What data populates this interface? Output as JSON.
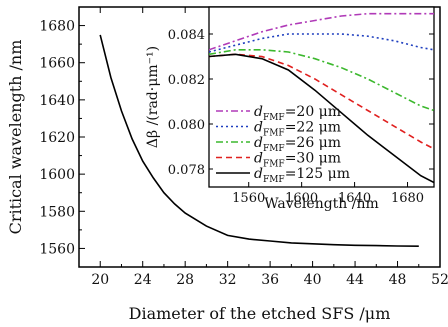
{
  "chart_data": [
    {
      "type": "line",
      "panel": "main",
      "xlabel": "Diameter of the etched SFS /μm",
      "ylabel": "Critical wavelength /nm",
      "xlim": [
        18,
        52
      ],
      "ylim": [
        1550,
        1690
      ],
      "xticks": [
        20,
        24,
        28,
        32,
        36,
        40,
        44,
        48,
        52
      ],
      "yticks": [
        1560,
        1580,
        1600,
        1620,
        1640,
        1660,
        1680
      ],
      "grid": false,
      "series": [
        {
          "color": "#000000",
          "style": "solid",
          "x": [
            20,
            21,
            22,
            23,
            24,
            25,
            26,
            27,
            28,
            30,
            32,
            34,
            36,
            38,
            40,
            42,
            44,
            46,
            48,
            50
          ],
          "y": [
            1675,
            1652,
            1634,
            1619,
            1607,
            1598,
            1590,
            1584,
            1579,
            1572,
            1567,
            1565,
            1564,
            1563,
            1562.5,
            1562,
            1561.7,
            1561.5,
            1561.3,
            1561.2
          ]
        }
      ]
    },
    {
      "type": "line",
      "panel": "inset",
      "xlabel": "Wavelength /nm",
      "ylabel": "Δβ /(rad·μm⁻¹)",
      "xlim": [
        1530,
        1700
      ],
      "ylim": [
        0.0772,
        0.0852
      ],
      "xticks": [
        1560,
        1600,
        1640,
        1680
      ],
      "yticks": [
        0.078,
        0.08,
        0.082,
        0.084
      ],
      "legend_position": "bottom-left",
      "series": [
        {
          "name": "d",
          "sub": "FMF",
          "value": "=20 μm",
          "color": "#b03ab8",
          "style": "dashdot",
          "x": [
            1530,
            1550,
            1570,
            1590,
            1610,
            1630,
            1650,
            1670,
            1690,
            1700
          ],
          "y": [
            0.0833,
            0.0837,
            0.0841,
            0.0844,
            0.0846,
            0.0848,
            0.0849,
            0.0849,
            0.0849,
            0.0849
          ]
        },
        {
          "name": "d",
          "sub": "FMF",
          "value": "=22 μm",
          "color": "#1f3fbf",
          "style": "dotted",
          "x": [
            1530,
            1550,
            1570,
            1590,
            1610,
            1630,
            1650,
            1670,
            1690,
            1700
          ],
          "y": [
            0.0832,
            0.0835,
            0.0838,
            0.084,
            0.084,
            0.084,
            0.0839,
            0.0837,
            0.0834,
            0.0833
          ]
        },
        {
          "name": "d",
          "sub": "FMF",
          "value": "=26 μm",
          "color": "#3cb82e",
          "style": "dashdot",
          "x": [
            1530,
            1550,
            1570,
            1590,
            1610,
            1630,
            1650,
            1670,
            1690,
            1700
          ],
          "y": [
            0.0831,
            0.0833,
            0.0833,
            0.0832,
            0.0829,
            0.0825,
            0.082,
            0.0814,
            0.0808,
            0.0806
          ]
        },
        {
          "name": "d",
          "sub": "FMF",
          "value": "=30 μm",
          "color": "#e0201f",
          "style": "dashed",
          "x": [
            1530,
            1550,
            1570,
            1590,
            1610,
            1630,
            1650,
            1670,
            1690,
            1700
          ],
          "y": [
            0.083,
            0.0831,
            0.083,
            0.0826,
            0.082,
            0.0813,
            0.0806,
            0.0799,
            0.0792,
            0.0789
          ]
        },
        {
          "name": "d",
          "sub": "FMF",
          "value": "=125 μm",
          "color": "#000000",
          "style": "solid",
          "x": [
            1530,
            1550,
            1570,
            1590,
            1610,
            1630,
            1650,
            1670,
            1690,
            1700
          ],
          "y": [
            0.083,
            0.0831,
            0.0829,
            0.0824,
            0.0815,
            0.0805,
            0.0795,
            0.0786,
            0.0777,
            0.0774
          ]
        }
      ]
    }
  ]
}
